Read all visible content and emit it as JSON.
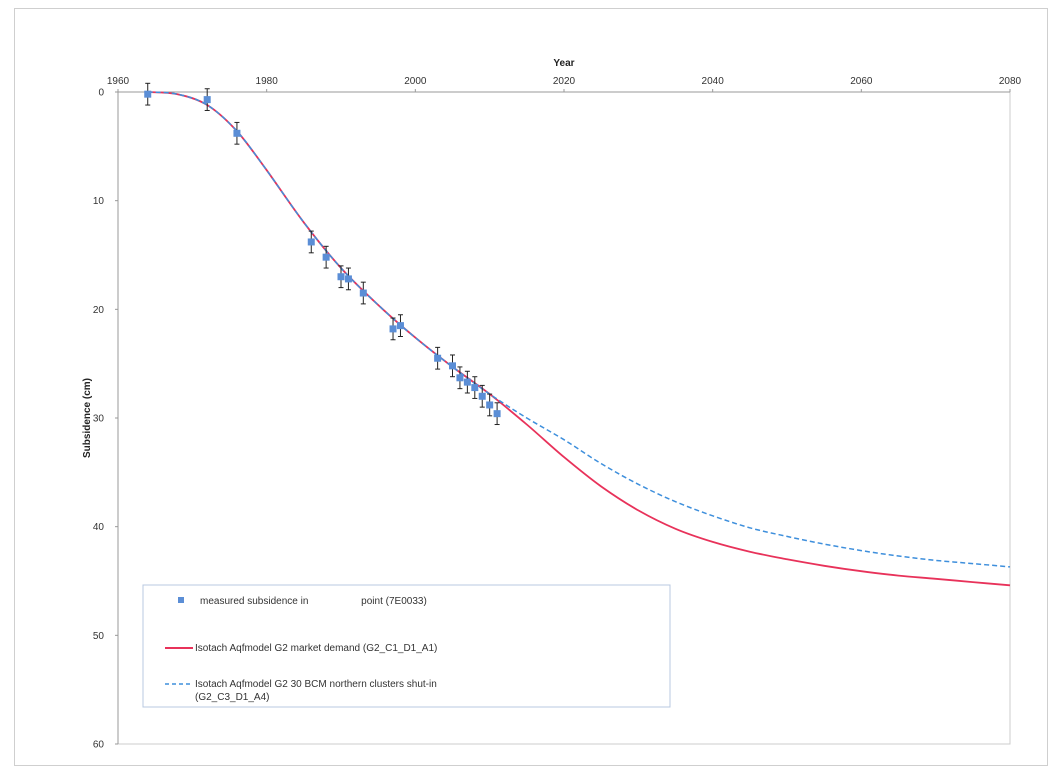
{
  "chart_data": {
    "type": "line",
    "xlabel": "Year",
    "ylabel": "Subsidence (cm)",
    "xlim": [
      1960,
      2080
    ],
    "ylim": [
      0,
      60
    ],
    "y_inverted": true,
    "x_axis_position": "top",
    "x_ticks": [
      "1960",
      "1980",
      "2000",
      "2020",
      "2040",
      "2060",
      "2080"
    ],
    "y_ticks": [
      "0",
      "10",
      "20",
      "30",
      "40",
      "50",
      "60"
    ],
    "grid": false,
    "legend_position": "bottom-left",
    "colors": {
      "measured": "#5b8ed6",
      "market": "#e8325a",
      "shutin": "#3e8fdc",
      "errorbar": "#222222"
    },
    "series": [
      {
        "name": "measured subsidence in                   point (7E0033)",
        "kind": "scatter-errorbar",
        "x": [
          1964,
          1972,
          1976,
          1986,
          1988,
          1990,
          1991,
          1993,
          1997,
          1998,
          2003,
          2005,
          2006,
          2007,
          2008,
          2009,
          2010,
          2011
        ],
        "y": [
          0.2,
          0.7,
          3.8,
          13.8,
          15.2,
          17.0,
          17.2,
          18.5,
          21.8,
          21.5,
          24.5,
          25.2,
          26.3,
          26.7,
          27.2,
          28.0,
          28.8,
          29.6
        ],
        "err": [
          1.0,
          1.0,
          1.0,
          1.0,
          1.0,
          1.0,
          1.0,
          1.0,
          1.0,
          1.0,
          1.0,
          1.0,
          1.0,
          1.0,
          1.0,
          1.0,
          1.0,
          1.0
        ]
      },
      {
        "name": "Isotach Aqfmodel G2 market demand (G2_C1_D1_A1)",
        "kind": "line",
        "x": [
          1964,
          1968,
          1972,
          1976,
          1980,
          1985,
          1990,
          1995,
          2000,
          2005,
          2010,
          2015,
          2020,
          2025,
          2030,
          2035,
          2040,
          2045,
          2050,
          2055,
          2060,
          2065,
          2070,
          2075,
          2080
        ],
        "y": [
          0.0,
          0.2,
          1.2,
          3.6,
          7.2,
          12.0,
          16.2,
          19.6,
          22.6,
          25.3,
          27.8,
          30.6,
          33.6,
          36.3,
          38.5,
          40.2,
          41.4,
          42.3,
          43.0,
          43.6,
          44.1,
          44.5,
          44.8,
          45.1,
          45.4
        ]
      },
      {
        "name": "Isotach Aqfmodel G2 30 BCM northern clusters shut-in (G2_C3_D1_A4)",
        "kind": "dashed-line",
        "x": [
          1964,
          1968,
          1972,
          1976,
          1980,
          1985,
          1990,
          1995,
          2000,
          2005,
          2010,
          2015,
          2020,
          2025,
          2030,
          2035,
          2040,
          2045,
          2050,
          2055,
          2060,
          2065,
          2070,
          2075,
          2080
        ],
        "y": [
          0.0,
          0.2,
          1.2,
          3.6,
          7.2,
          12.0,
          16.2,
          19.6,
          22.6,
          25.3,
          27.8,
          30.0,
          32.0,
          34.2,
          36.1,
          37.7,
          39.0,
          40.1,
          40.9,
          41.6,
          42.2,
          42.7,
          43.1,
          43.4,
          43.7
        ]
      }
    ]
  }
}
